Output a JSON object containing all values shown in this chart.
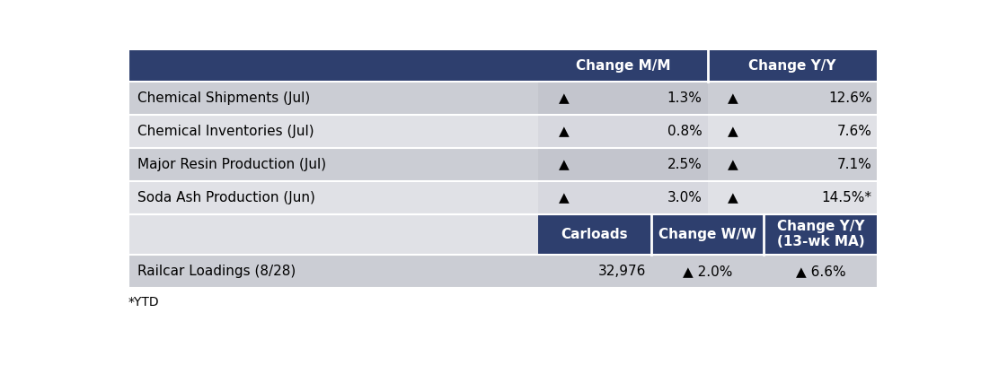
{
  "header1_cols": [
    "",
    "Change M/M",
    "Change Y/Y"
  ],
  "header2_cols": [
    "",
    "Carloads",
    "Change W/W",
    "Change Y/Y\n(13-wk MA)"
  ],
  "section1_rows": [
    [
      "Chemical Shipments (Jul)",
      "▲",
      "1.3%",
      "▲",
      "12.6%"
    ],
    [
      "Chemical Inventories (Jul)",
      "▲",
      "0.8%",
      "▲",
      "7.6%"
    ],
    [
      "Major Resin Production (Jul)",
      "▲",
      "2.5%",
      "▲",
      "7.1%"
    ],
    [
      "Soda Ash Production (Jun)",
      "▲",
      "3.0%",
      "▲",
      "14.5%*"
    ]
  ],
  "section2_rows": [
    [
      "Railcar Loadings (8/28)",
      "32,976",
      "▲ 2.0%",
      "▲ 6.6%"
    ]
  ],
  "footnote": "*YTD",
  "header_bg": "#2E3F6E",
  "header_fg": "#FFFFFF",
  "row_bg_dark": "#CBCDD5",
  "row_bg_light": "#E0E1E6",
  "mm_col_bg_dark": "#C4C6CE",
  "mm_col_bg_light": "#D9DAE0",
  "yy_col_bg_dark": "#CBCDD5",
  "yy_col_bg_light": "#D9DAE0",
  "fig_bg": "#FFFFFF",
  "font_size": 11,
  "header_font_size": 11,
  "white": "#FFFFFF"
}
